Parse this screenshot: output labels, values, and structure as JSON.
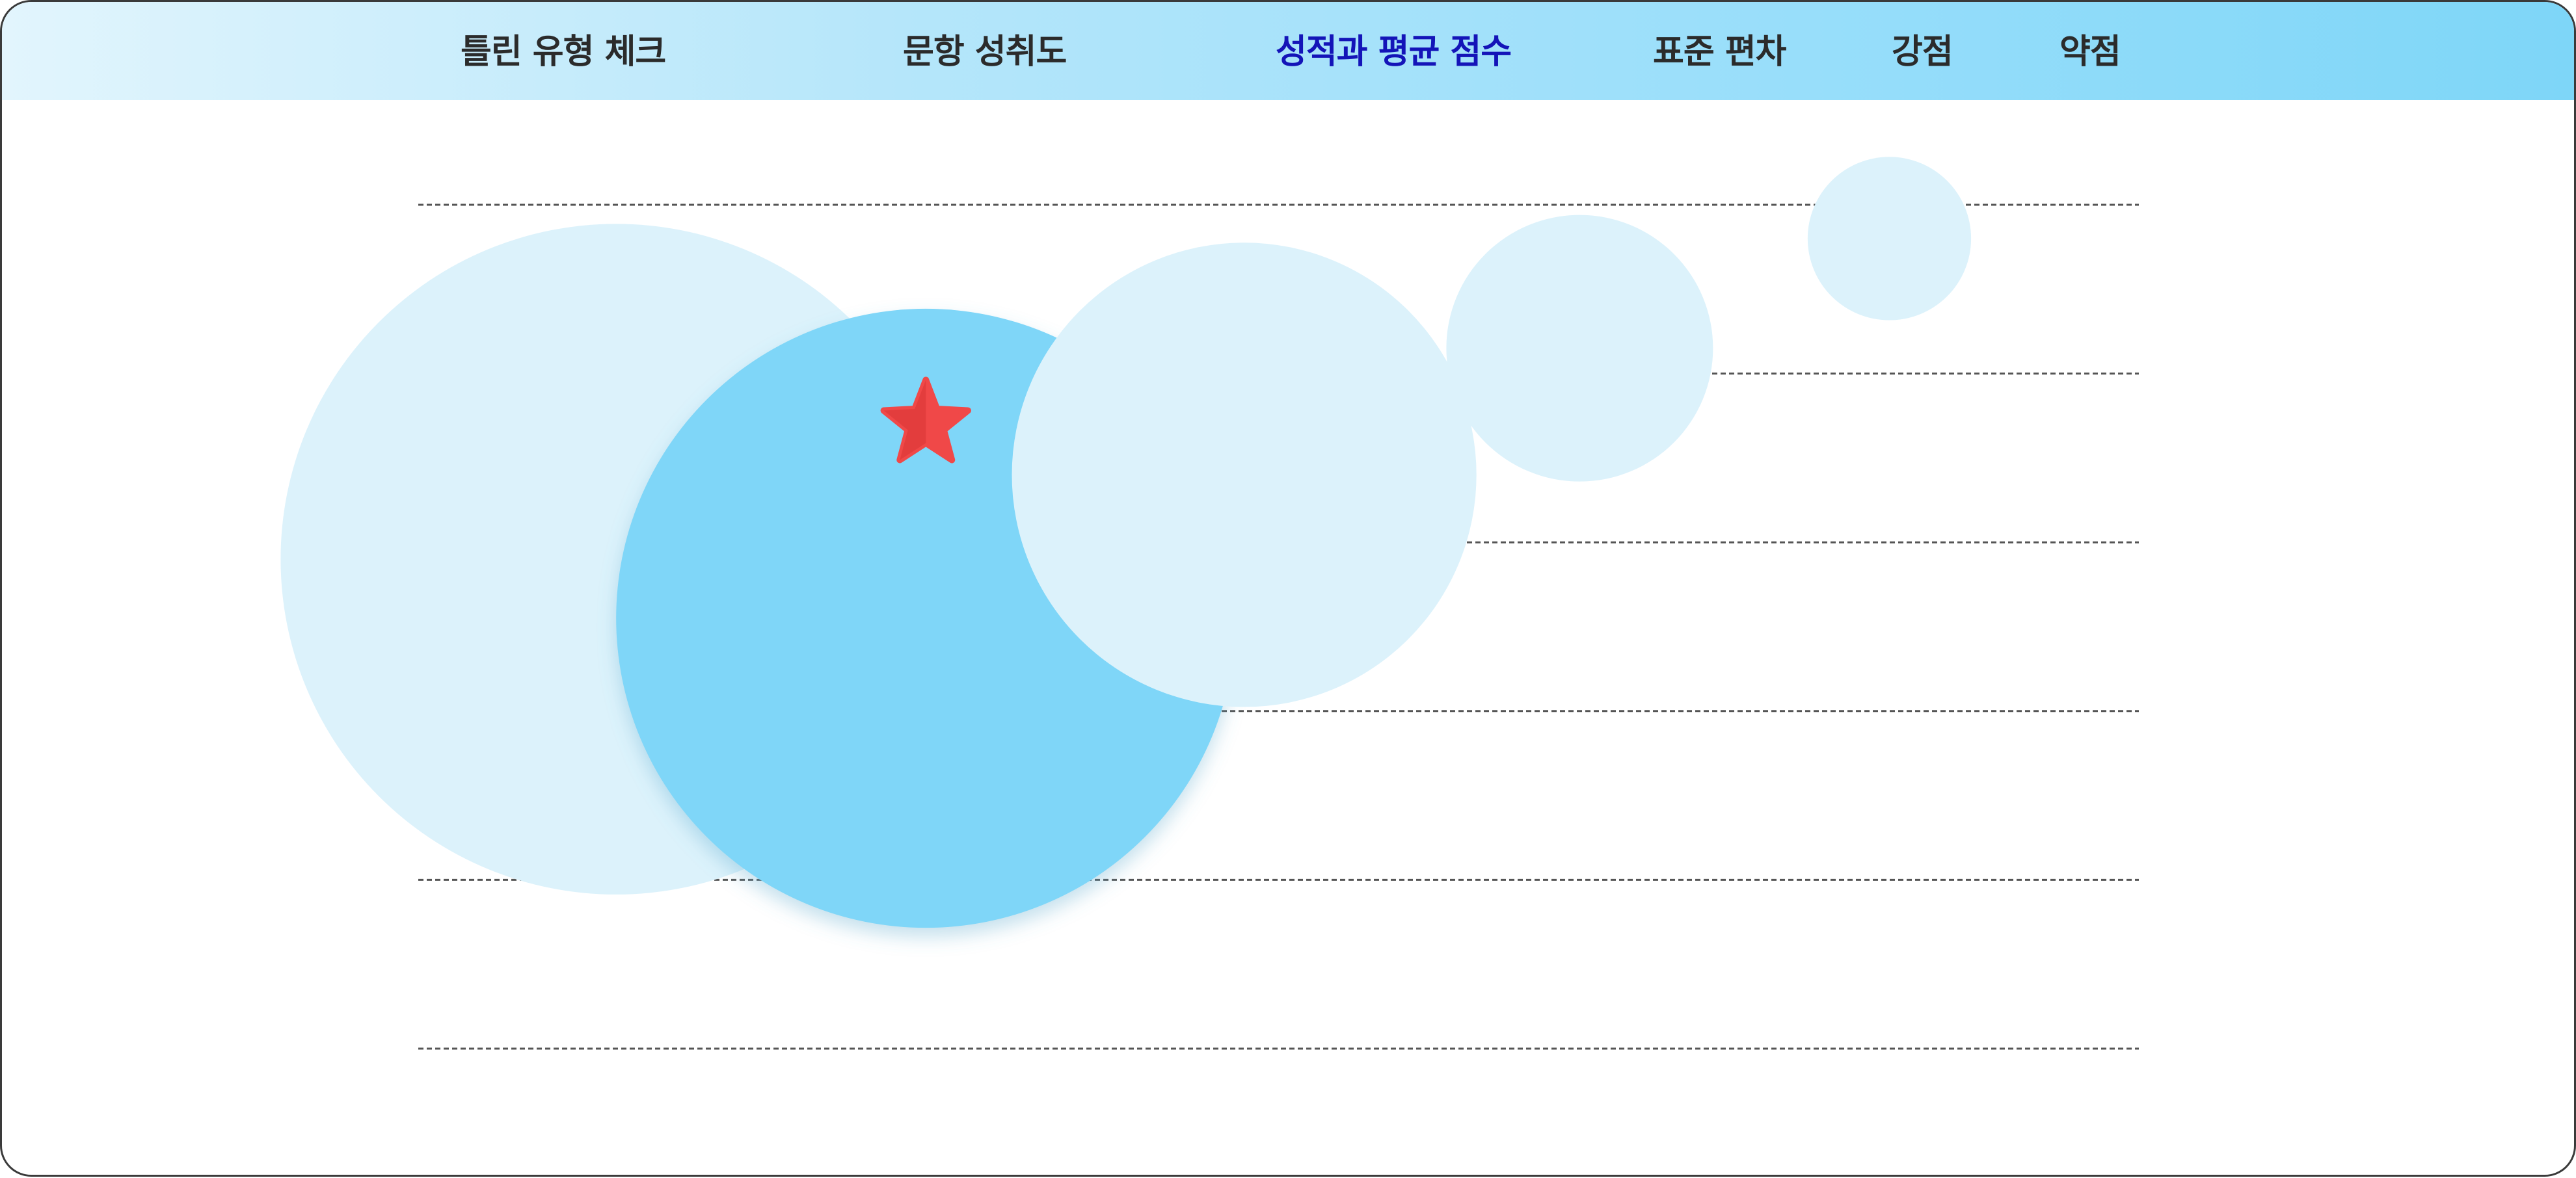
{
  "tabs": [
    {
      "label": "틀린 유형 체크",
      "active": false
    },
    {
      "label": "문항 성취도",
      "active": false
    },
    {
      "label": "성적과 평균 점수",
      "active": true
    },
    {
      "label": "표준 편차",
      "active": false
    },
    {
      "label": "강점",
      "active": false
    },
    {
      "label": "약점",
      "active": false
    }
  ],
  "colors": {
    "active_tab": "#1414b8",
    "tab_text": "#2b2b2b",
    "bubble_light": "#dcf2fb",
    "bubble_highlight": "#7fd6f8",
    "star": "#f04848",
    "gridline": "#555555"
  },
  "chart_data": {
    "type": "scatter",
    "gridlines": 6,
    "ylim": [
      0,
      100
    ],
    "xlim": [
      0,
      100
    ],
    "points": [
      {
        "x": 11.5,
        "y": 58,
        "size": 78,
        "highlight": false
      },
      {
        "x": 29.5,
        "y": 51,
        "size": 72,
        "highlight": true
      },
      {
        "x": 48,
        "y": 68,
        "size": 54,
        "highlight": false
      },
      {
        "x": 67.5,
        "y": 83,
        "size": 31,
        "highlight": false
      },
      {
        "x": 85.5,
        "y": 96,
        "size": 19,
        "highlight": false
      }
    ],
    "marker": {
      "type": "star",
      "x": 29.5,
      "y": 74,
      "color": "#f04848"
    }
  }
}
